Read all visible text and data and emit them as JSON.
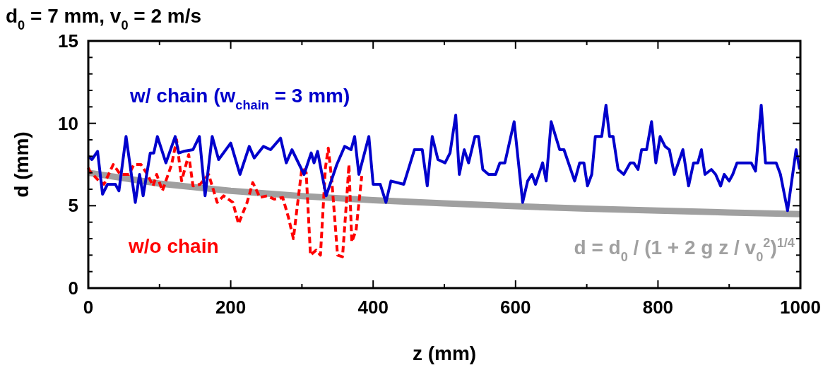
{
  "chart_data": {
    "type": "line",
    "title": "d$_{0}$ = 7 mm, v$_{0}$ = 2 m/s",
    "xlabel": "z (mm)",
    "ylabel": "d (mm)",
    "xlim": [
      0,
      1000
    ],
    "ylim": [
      0,
      15
    ],
    "xticks": [
      0,
      {
        "value": 100,
        "label": null
      },
      200,
      {
        "value": 300,
        "label": null
      },
      400,
      {
        "value": 500,
        "label": null
      },
      600,
      {
        "value": 700,
        "label": null
      },
      800,
      {
        "value": 900,
        "label": null
      },
      1000
    ],
    "yticks": [
      0,
      {
        "value": 1,
        "label": null
      },
      {
        "value": 2,
        "label": null
      },
      {
        "value": 3,
        "label": null
      },
      {
        "value": 4,
        "label": null
      },
      5,
      {
        "value": 6,
        "label": null
      },
      {
        "value": 7,
        "label": null
      },
      {
        "value": 8,
        "label": null
      },
      {
        "value": 9,
        "label": null
      },
      10,
      {
        "value": 11,
        "label": null
      },
      {
        "value": 12,
        "label": null
      },
      {
        "value": 13,
        "label": null
      },
      {
        "value": 14,
        "label": null
      },
      15
    ],
    "grid": false,
    "marker": "none",
    "series": [
      {
        "name": "d = d$_{0}$ / (1 + 2 g z / v$_{0}$$^{2}$)$^{1/4}$",
        "color": "#a0a0a0",
        "line_style": "solid",
        "x": [
          0,
          100,
          200,
          300,
          400,
          500,
          600,
          700,
          800,
          900,
          1000
        ],
        "values": [
          7.0,
          6.34,
          5.9,
          5.58,
          5.34,
          5.14,
          4.97,
          4.82,
          4.7,
          4.59,
          4.49
        ]
      },
      {
        "name": "w/o chain",
        "color": "#ff0000",
        "line_style": "dashed",
        "x": [
          0,
          2,
          15,
          22,
          35,
          45,
          57,
          64,
          74,
          83,
          91,
          96,
          104,
          117,
          124,
          131,
          141,
          147,
          157,
          169,
          181,
          190,
          203,
          211,
          223,
          231,
          241,
          251,
          261,
          273,
          281,
          288,
          300,
          306,
          312,
          320,
          326,
          333,
          337,
          342,
          350,
          357,
          363,
          366,
          370,
          376,
          384
        ],
        "values": [
          7.3,
          7.1,
          6.5,
          6.3,
          7.5,
          6.9,
          6.9,
          7.5,
          7.5,
          6.9,
          6.2,
          6.9,
          5.9,
          7.5,
          9.0,
          6.5,
          8.1,
          6.2,
          6.3,
          6.9,
          5.2,
          5.6,
          5.2,
          3.9,
          5.2,
          6.4,
          5.5,
          5.6,
          5.4,
          5.5,
          4.3,
          3.0,
          7.3,
          7.0,
          2.0,
          2.3,
          2.0,
          7.3,
          8.5,
          6.5,
          2.0,
          1.9,
          5.5,
          7.5,
          2.8,
          3.5,
          6.8
        ]
      },
      {
        "name": "w/ chain (w$_{chain}$ = 3 mm)",
        "color": "#0000cc",
        "line_style": "solid",
        "x": [
          0,
          5,
          13,
          20,
          27,
          38,
          43,
          53,
          66,
          72,
          77,
          87,
          92,
          97,
          109,
          122,
          127,
          134,
          147,
          156,
          164,
          174,
          183,
          200,
          213,
          226,
          233,
          246,
          256,
          270,
          278,
          286,
          303,
          313,
          317,
          322,
          334,
          349,
          360,
          369,
          374,
          380,
          394,
          400,
          410,
          418,
          425,
          443,
          458,
          469,
          476,
          483,
          491,
          501,
          508,
          516,
          521,
          528,
          534,
          543,
          548,
          554,
          562,
          572,
          578,
          585,
          598,
          610,
          617,
          623,
          628,
          638,
          643,
          650,
          662,
          668,
          683,
          690,
          696,
          701,
          707,
          712,
          721,
          727,
          732,
          737,
          744,
          752,
          761,
          766,
          772,
          777,
          784,
          791,
          797,
          803,
          810,
          816,
          823,
          835,
          843,
          850,
          856,
          861,
          866,
          875,
          881,
          888,
          893,
          900,
          905,
          911,
          931,
          937,
          945,
          951,
          966,
          972,
          982,
          994,
          999
        ],
        "values": [
          8.0,
          7.8,
          8.3,
          5.7,
          6.3,
          6.3,
          5.9,
          9.2,
          5.2,
          6.9,
          5.6,
          8.2,
          8.2,
          9.2,
          7.6,
          9.2,
          8.2,
          8.3,
          8.4,
          9.2,
          5.6,
          9.2,
          7.8,
          8.8,
          6.9,
          8.6,
          7.9,
          8.6,
          8.4,
          9.1,
          7.6,
          8.4,
          6.9,
          8.2,
          7.6,
          8.3,
          5.6,
          7.5,
          8.6,
          8.4,
          9.2,
          6.9,
          9.2,
          6.3,
          6.3,
          5.2,
          6.5,
          6.3,
          8.4,
          8.4,
          6.2,
          9.2,
          7.8,
          7.6,
          8.2,
          10.5,
          6.9,
          8.4,
          7.6,
          9.2,
          9.2,
          7.2,
          6.9,
          6.9,
          7.6,
          7.6,
          10.1,
          5.2,
          6.5,
          6.9,
          6.3,
          7.6,
          6.5,
          10.1,
          8.4,
          8.4,
          6.5,
          7.6,
          7.6,
          6.2,
          6.9,
          9.2,
          9.2,
          11.1,
          9.2,
          9.2,
          7.2,
          6.9,
          7.6,
          7.6,
          7.2,
          8.4,
          8.4,
          10.1,
          7.6,
          9.2,
          8.6,
          8.4,
          6.9,
          8.4,
          6.2,
          7.6,
          7.6,
          8.4,
          6.9,
          7.2,
          6.9,
          6.2,
          6.9,
          6.5,
          6.9,
          7.6,
          7.6,
          7.1,
          11.1,
          7.6,
          7.6,
          6.9,
          4.7,
          8.4,
          7.2
        ]
      }
    ]
  }
}
